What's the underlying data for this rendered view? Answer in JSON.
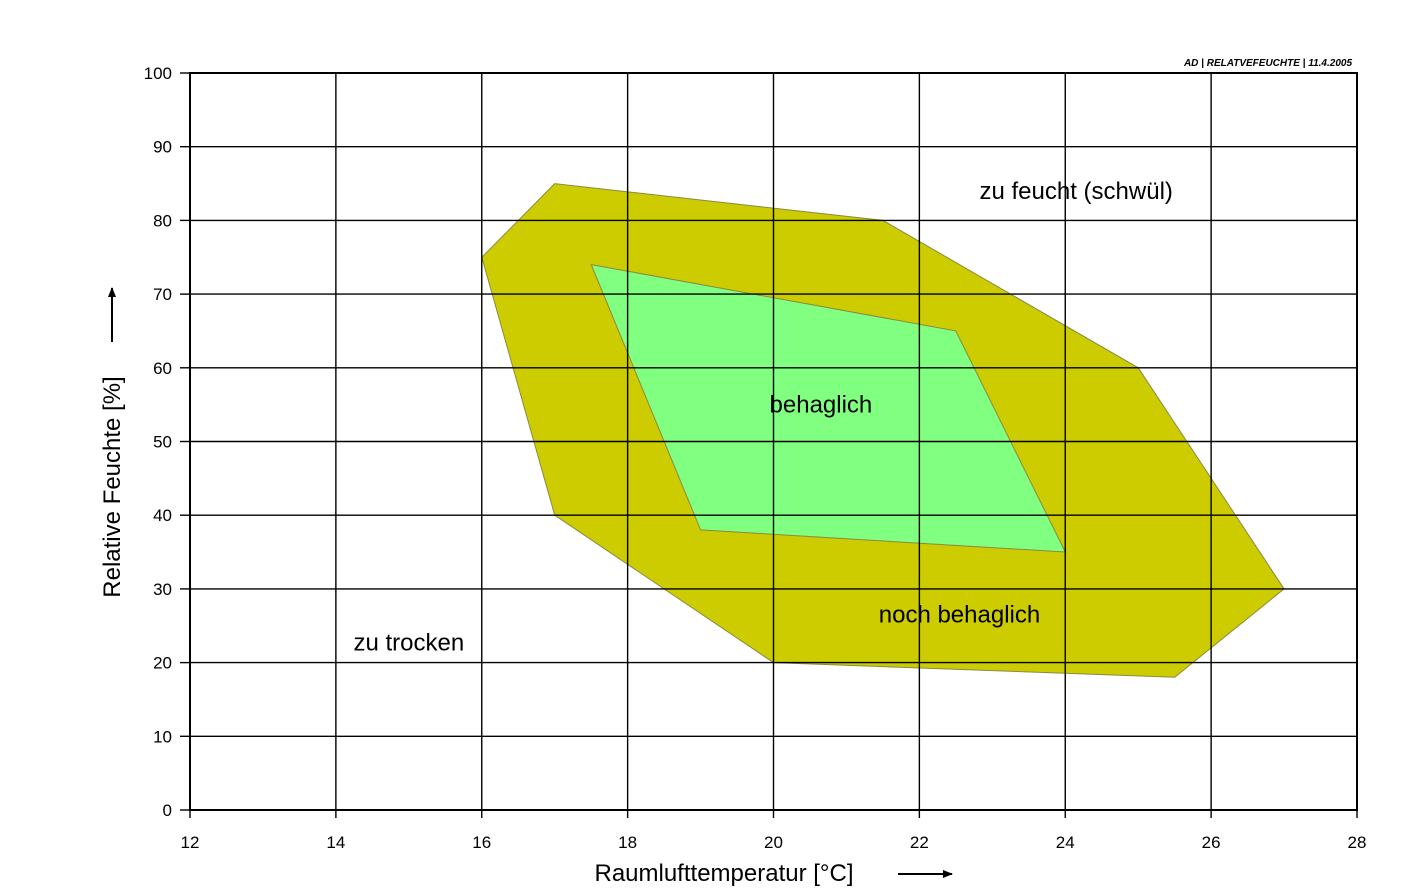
{
  "chart_data": {
    "type": "area",
    "stamp": "AD | RELATVEFEUCHTE | 11.4.2005",
    "xlabel": "Raumlufttemperatur [°C]",
    "ylabel": "Relative Feuchte [%]",
    "xlim": [
      12,
      28
    ],
    "ylim": [
      0,
      100
    ],
    "x_ticks": [
      12,
      14,
      16,
      18,
      20,
      22,
      24,
      26,
      28
    ],
    "y_ticks": [
      0,
      10,
      20,
      30,
      40,
      50,
      60,
      70,
      80,
      90,
      100
    ],
    "grid": true,
    "regions": [
      {
        "label": "noch behaglich",
        "color": "#cccc00",
        "points": [
          [
            16,
            75
          ],
          [
            17,
            85
          ],
          [
            21.5,
            80
          ],
          [
            25,
            60
          ],
          [
            27,
            30
          ],
          [
            25.5,
            18
          ],
          [
            20,
            20
          ],
          [
            17,
            40
          ]
        ]
      },
      {
        "label": "behaglich",
        "color": "#80ff80",
        "points": [
          [
            17.5,
            74
          ],
          [
            22.5,
            65
          ],
          [
            24,
            35
          ],
          [
            19,
            38
          ]
        ]
      }
    ],
    "annotations": [
      {
        "text": "zu feucht (schwül)",
        "x": 24.15,
        "y": 84
      },
      {
        "text": "behaglich",
        "x": 20.65,
        "y": 55
      },
      {
        "text": "noch behaglich",
        "x": 22.55,
        "y": 26.5
      },
      {
        "text": "zu trocken",
        "x": 15.0,
        "y": 22.7
      }
    ],
    "colors": {
      "outer_region": "#cccc00",
      "inner_region": "#80ff80",
      "grid": "#000000"
    }
  }
}
